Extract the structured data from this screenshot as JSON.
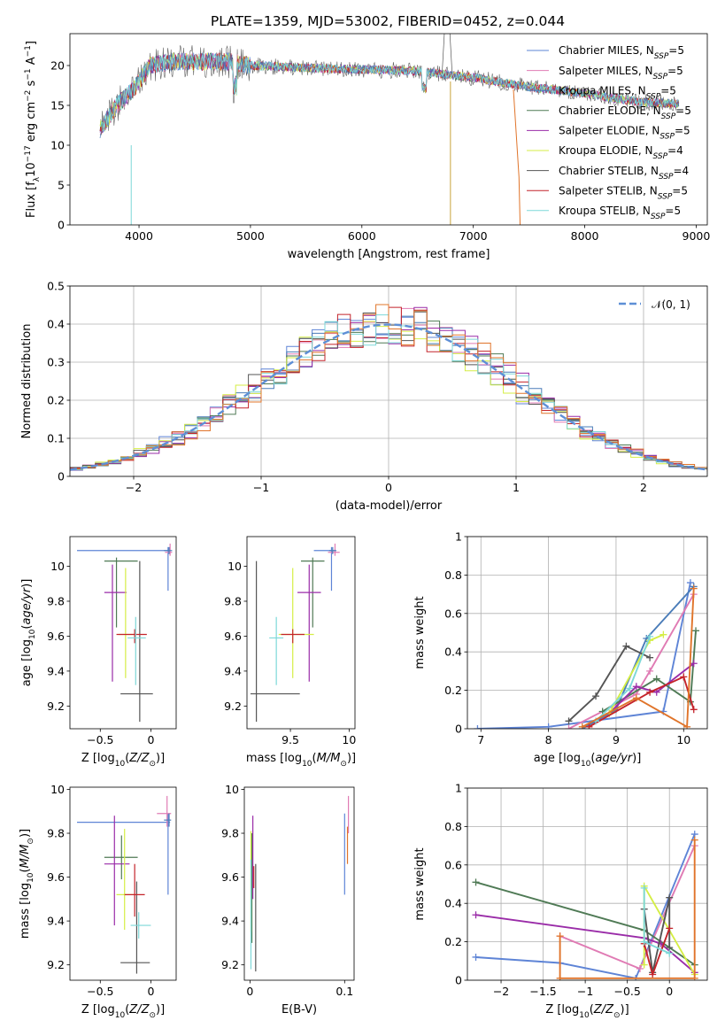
{
  "title": "PLATE=1359, MJD=53002, FIBERID=0452, z=0.044",
  "colors": {
    "Chabrier MILES": "#5e84d6",
    "Salpeter MILES": "#e07bb4",
    "Kroupa MILES": "#4a7cb8",
    "Chabrier ELODIE": "#4f7a55",
    "Salpeter ELODIE": "#9a2ca8",
    "Kroupa ELODIE": "#d5ee45",
    "Chabrier STELIB": "#555555",
    "Salpeter STELIB": "#c4232a",
    "Kroupa STELIB": "#7dd8d8",
    "accent_orange": "#e0742a"
  },
  "chart_data": [
    {
      "type": "line",
      "panel": "spectrum",
      "xlabel": "wavelength [Angstrom, rest frame]",
      "ylabel_parts": [
        "Flux [f",
        "λ",
        "10",
        "−17",
        " erg cm",
        "−2",
        " s",
        "−1",
        " A",
        "−1",
        "]"
      ],
      "xlim": [
        3380,
        9100
      ],
      "ylim": [
        0,
        24
      ],
      "xticks": [
        4000,
        5000,
        6000,
        7000,
        8000,
        9000
      ],
      "yticks": [
        0,
        5,
        10,
        15,
        20
      ],
      "legend_position": "top-right",
      "series": [
        {
          "base": "Chabrier MILES, N",
          "sub": "SSP",
          "tail": "=5"
        },
        {
          "base": "Salpeter MILES, N",
          "sub": "SSP",
          "tail": "=5"
        },
        {
          "base": "Kroupa MILES, N",
          "sub": "SSP",
          "tail": "=5"
        },
        {
          "base": "Chabrier ELODIE, N",
          "sub": "SSP",
          "tail": "=5"
        },
        {
          "base": "Salpeter ELODIE, N",
          "sub": "SSP",
          "tail": "=5"
        },
        {
          "base": "Kroupa ELODIE, N",
          "sub": "SSP",
          "tail": "=4"
        },
        {
          "base": "Chabrier STELIB, N",
          "sub": "SSP",
          "tail": "=4"
        },
        {
          "base": "Salpeter STELIB, N",
          "sub": "SSP",
          "tail": "=5"
        },
        {
          "base": "Kroupa STELIB, N",
          "sub": "SSP",
          "tail": "=5"
        }
      ],
      "continuum_x": [
        3650,
        3800,
        3950,
        4100,
        4300,
        4500,
        4800,
        5000,
        5500,
        6000,
        6500,
        7000,
        7500,
        8000,
        8500,
        8850
      ],
      "continuum_y": [
        12,
        15,
        17,
        20,
        20.5,
        20.5,
        20.5,
        20,
        19.7,
        19.5,
        19.3,
        18.5,
        17.3,
        16.5,
        15.4,
        15.2
      ]
    },
    {
      "type": "histogram",
      "panel": "residuals",
      "xlabel": "(data-model)/error",
      "ylabel": "Normed distribution",
      "xlim": [
        -2.5,
        2.5
      ],
      "ylim": [
        0,
        0.5
      ],
      "xticks": [
        -2,
        -1,
        0,
        1,
        2
      ],
      "yticks": [
        0.0,
        0.1,
        0.2,
        0.3,
        0.4,
        0.5
      ],
      "grid": true,
      "legend_position": "top-right",
      "reference_curve": "𝒩(0, 1)",
      "bin_width": 0.1
    },
    {
      "type": "errorbar",
      "panel": "age-vs-Z",
      "xlabel": "Z [log10(Z/Z⊙)]",
      "ylabel": "age  [log10(age/yr)]",
      "xlim": [
        -0.8,
        0.25
      ],
      "ylim": [
        9.07,
        10.17
      ],
      "xticks": [
        -0.5,
        0.0
      ],
      "yticks": [
        9.2,
        9.4,
        9.6,
        9.8,
        10.0
      ],
      "points": [
        {
          "model": "Chabrier MILES",
          "x": 0.17,
          "y": 10.09,
          "xerr": [
            0.9,
            0.02
          ],
          "yerr": [
            0.23,
            0.02
          ]
        },
        {
          "model": "Salpeter MILES",
          "x": 0.19,
          "y": 10.08,
          "xerr": [
            0.05,
            0.02
          ],
          "yerr": [
            0.02,
            0.05
          ]
        },
        {
          "model": "Kroupa MILES",
          "x": 0.18,
          "y": 10.09,
          "xerr": [
            0.05,
            0.03
          ],
          "yerr": [
            0.02,
            0.02
          ]
        },
        {
          "model": "Chabrier ELODIE",
          "x": -0.34,
          "y": 10.03,
          "xerr": [
            0.12,
            0.21
          ],
          "yerr": [
            0.38,
            0.02
          ]
        },
        {
          "model": "Salpeter ELODIE",
          "x": -0.38,
          "y": 9.85,
          "xerr": [
            0.08,
            0.14
          ],
          "yerr": [
            0.51,
            0.16
          ]
        },
        {
          "model": "Kroupa ELODIE",
          "x": -0.25,
          "y": 9.61,
          "xerr": [
            0.07,
            0.1
          ],
          "yerr": [
            0.25,
            0.38
          ]
        },
        {
          "model": "Chabrier STELIB",
          "x": -0.11,
          "y": 9.27,
          "xerr": [
            0.19,
            0.13
          ],
          "yerr": [
            0.16,
            0.76
          ]
        },
        {
          "model": "Salpeter STELIB",
          "x": -0.16,
          "y": 9.61,
          "xerr": [
            0.18,
            0.12
          ],
          "yerr": [
            0.05,
            0.03
          ]
        },
        {
          "model": "Kroupa STELIB",
          "x": -0.15,
          "y": 9.59,
          "xerr": [
            0.08,
            0.1
          ],
          "yerr": [
            0.27,
            0.12
          ]
        }
      ]
    },
    {
      "type": "errorbar",
      "panel": "age-vs-mass",
      "xlabel": "mass [log10(M/M⊙)]",
      "ylabel": "",
      "xlim": [
        9.13,
        10.05
      ],
      "ylim": [
        9.07,
        10.17
      ],
      "xticks": [
        9.5,
        10.0
      ],
      "yticks": [
        9.2,
        9.4,
        9.6,
        9.8,
        10.0
      ],
      "points": [
        {
          "model": "Chabrier MILES",
          "x": 9.85,
          "y": 10.09,
          "xerr": [
            0.15,
            0.04
          ],
          "yerr": [
            0.23,
            0.02
          ]
        },
        {
          "model": "Salpeter MILES",
          "x": 9.88,
          "y": 10.08,
          "xerr": [
            0.06,
            0.04
          ],
          "yerr": [
            0.02,
            0.05
          ]
        },
        {
          "model": "Kroupa MILES",
          "x": 9.86,
          "y": 10.09,
          "xerr": [
            0.03,
            0.03
          ],
          "yerr": [
            0.02,
            0.02
          ]
        },
        {
          "model": "Chabrier ELODIE",
          "x": 9.69,
          "y": 10.03,
          "xerr": [
            0.1,
            0.1
          ],
          "yerr": [
            0.38,
            0.02
          ]
        },
        {
          "model": "Salpeter ELODIE",
          "x": 9.66,
          "y": 9.85,
          "xerr": [
            0.1,
            0.1
          ],
          "yerr": [
            0.51,
            0.16
          ]
        },
        {
          "model": "Kroupa ELODIE",
          "x": 9.52,
          "y": 9.61,
          "xerr": [
            0.12,
            0.18
          ],
          "yerr": [
            0.25,
            0.38
          ]
        },
        {
          "model": "Chabrier STELIB",
          "x": 9.21,
          "y": 9.27,
          "xerr": [
            0.05,
            0.37
          ],
          "yerr": [
            0.16,
            0.76
          ]
        },
        {
          "model": "Salpeter STELIB",
          "x": 9.52,
          "y": 9.61,
          "xerr": [
            0.1,
            0.1
          ],
          "yerr": [
            0.05,
            0.03
          ]
        },
        {
          "model": "Kroupa STELIB",
          "x": 9.38,
          "y": 9.59,
          "xerr": [
            0.06,
            0.06
          ],
          "yerr": [
            0.27,
            0.12
          ]
        }
      ]
    },
    {
      "type": "line",
      "panel": "weight-vs-age",
      "xlabel": "age  [log10(age/yr)]",
      "ylabel": "mass weight",
      "xlim": [
        6.8,
        10.35
      ],
      "ylim": [
        0,
        1
      ],
      "xticks": [
        7,
        8,
        9,
        10
      ],
      "yticks": [
        0.0,
        0.2,
        0.4,
        0.6,
        0.8,
        1.0
      ],
      "grid": true,
      "series": [
        {
          "model": "Chabrier MILES",
          "x": [
            6.95,
            8.0,
            9.7,
            10.1
          ],
          "y": [
            0.0,
            0.01,
            0.09,
            0.76
          ]
        },
        {
          "model": "Salpeter MILES",
          "x": [
            8.3,
            9.3,
            9.5,
            10.15
          ],
          "y": [
            0.0,
            0.18,
            0.3,
            0.7
          ]
        },
        {
          "model": "Kroupa MILES",
          "x": [
            8.5,
            9.0,
            9.45,
            10.15
          ],
          "y": [
            0.0,
            0.1,
            0.47,
            0.74
          ]
        },
        {
          "model": "Chabrier ELODIE",
          "x": [
            8.8,
            9.6,
            10.1,
            10.18
          ],
          "y": [
            0.09,
            0.26,
            0.14,
            0.51
          ]
        },
        {
          "model": "Salpeter ELODIE",
          "x": [
            8.9,
            9.3,
            9.6,
            10.15
          ],
          "y": [
            0.08,
            0.22,
            0.19,
            0.34
          ]
        },
        {
          "model": "Kroupa ELODIE",
          "x": [
            8.9,
            9.5,
            9.7
          ],
          "y": [
            0.08,
            0.46,
            0.49
          ]
        },
        {
          "model": "Chabrier STELIB",
          "x": [
            8.3,
            8.7,
            9.15,
            9.5
          ],
          "y": [
            0.04,
            0.17,
            0.43,
            0.37
          ]
        },
        {
          "model": "Salpeter STELIB",
          "x": [
            8.6,
            9.5,
            10.0,
            10.15
          ],
          "y": [
            0.01,
            0.19,
            0.27,
            0.1
          ]
        },
        {
          "model": "Kroupa STELIB",
          "x": [
            8.7,
            9.2,
            9.5
          ],
          "y": [
            0.04,
            0.21,
            0.48
          ]
        },
        {
          "model": "accent_orange",
          "x": [
            8.5,
            9.3,
            10.05,
            10.15
          ],
          "y": [
            0.01,
            0.16,
            0.01,
            0.73
          ]
        }
      ]
    },
    {
      "type": "errorbar",
      "panel": "mass-vs-Z",
      "xlabel": "Z [log10(Z/Z⊙)]",
      "ylabel": "mass [log10(M/M⊙)]",
      "xlim": [
        -0.8,
        0.25
      ],
      "ylim": [
        9.13,
        10.01
      ],
      "xticks": [
        -0.5,
        0.0
      ],
      "yticks": [
        9.2,
        9.4,
        9.6,
        9.8,
        10.0
      ],
      "points": [
        {
          "model": "Chabrier MILES",
          "x": 0.17,
          "y": 9.85,
          "xerr": [
            0.9,
            0.02
          ],
          "yerr": [
            0.33,
            0.04
          ]
        },
        {
          "model": "Salpeter MILES",
          "x": 0.16,
          "y": 9.89,
          "xerr": [
            0.1,
            0.04
          ],
          "yerr": [
            0.06,
            0.08
          ]
        },
        {
          "model": "Kroupa MILES",
          "x": 0.18,
          "y": 9.86,
          "xerr": [
            0.05,
            0.02
          ],
          "yerr": [
            0.03,
            0.03
          ]
        },
        {
          "model": "Chabrier ELODIE",
          "x": -0.29,
          "y": 9.69,
          "xerr": [
            0.17,
            0.16
          ],
          "yerr": [
            0.1,
            0.1
          ]
        },
        {
          "model": "Salpeter ELODIE",
          "x": -0.36,
          "y": 9.66,
          "xerr": [
            0.1,
            0.15
          ],
          "yerr": [
            0.28,
            0.22
          ]
        },
        {
          "model": "Kroupa ELODIE",
          "x": -0.26,
          "y": 9.52,
          "xerr": [
            0.08,
            0.1
          ],
          "yerr": [
            0.16,
            0.3
          ]
        },
        {
          "model": "Chabrier STELIB",
          "x": -0.14,
          "y": 9.21,
          "xerr": [
            0.16,
            0.13
          ],
          "yerr": [
            0.05,
            0.37
          ]
        },
        {
          "model": "Salpeter STELIB",
          "x": -0.16,
          "y": 9.52,
          "xerr": [
            0.1,
            0.1
          ],
          "yerr": [
            0.1,
            0.14
          ]
        },
        {
          "model": "Kroupa STELIB",
          "x": -0.12,
          "y": 9.38,
          "xerr": [
            0.08,
            0.12
          ],
          "yerr": [
            0.06,
            0.06
          ]
        }
      ]
    },
    {
      "type": "errorbar",
      "panel": "mass-vs-EBV",
      "xlabel": "E(B-V)",
      "ylabel": "",
      "xlim": [
        -0.006,
        0.11
      ],
      "ylim": [
        9.13,
        10.01
      ],
      "xticks": [
        0.0,
        0.1
      ],
      "yticks": [
        9.2,
        9.4,
        9.6,
        9.8,
        10.0
      ],
      "points": [
        {
          "model": "Chabrier MILES",
          "x": 0.1,
          "y": 9.7,
          "yerr": [
            0.18,
            0.19
          ]
        },
        {
          "model": "Salpeter MILES",
          "x": 0.104,
          "y": 9.88,
          "yerr": [
            0.08,
            0.09
          ]
        },
        {
          "model": "accent_orange",
          "x": 0.103,
          "y": 9.78,
          "yerr": [
            0.12,
            0.05
          ]
        },
        {
          "model": "Chabrier ELODIE",
          "x": 0.002,
          "y": 9.6,
          "yerr": [
            0.3,
            0.2
          ]
        },
        {
          "model": "Salpeter ELODIE",
          "x": 0.003,
          "y": 9.7,
          "yerr": [
            0.2,
            0.18
          ]
        },
        {
          "model": "Kroupa ELODIE",
          "x": 0.001,
          "y": 9.65,
          "yerr": [
            0.3,
            0.16
          ]
        },
        {
          "model": "Chabrier STELIB",
          "x": 0.006,
          "y": 9.42,
          "yerr": [
            0.25,
            0.24
          ]
        },
        {
          "model": "Salpeter STELIB",
          "x": 0.004,
          "y": 9.6,
          "yerr": [
            0.05,
            0.05
          ]
        },
        {
          "model": "Kroupa STELIB",
          "x": 0.001,
          "y": 9.38,
          "yerr": [
            0.2,
            0.3
          ]
        }
      ]
    },
    {
      "type": "line",
      "panel": "weight-vs-Z",
      "xlabel": "Z [log10(Z/Z⊙)]",
      "ylabel": "mass weight",
      "xlim": [
        -2.4,
        0.45
      ],
      "ylim": [
        0,
        1
      ],
      "xticks": [
        -2.0,
        -1.5,
        -1.0,
        -0.5,
        0.0
      ],
      "yticks": [
        0.0,
        0.2,
        0.4,
        0.6,
        0.8,
        1.0
      ],
      "grid": true,
      "series": [
        {
          "model": "Chabrier MILES",
          "x": [
            -2.3,
            -1.3,
            -0.4,
            0.3
          ],
          "y": [
            0.12,
            0.09,
            0.01,
            0.76
          ]
        },
        {
          "model": "Salpeter MILES",
          "x": [
            -1.3,
            -0.35,
            0.3
          ],
          "y": [
            0.23,
            0.06,
            0.7
          ]
        },
        {
          "model": "Chabrier ELODIE",
          "x": [
            -2.3,
            -0.3,
            0.3
          ],
          "y": [
            0.51,
            0.26,
            0.08
          ]
        },
        {
          "model": "Salpeter ELODIE",
          "x": [
            -2.3,
            -0.3,
            -0.1,
            0.3
          ],
          "y": [
            0.34,
            0.22,
            0.19,
            0.04
          ]
        },
        {
          "model": "Kroupa ELODIE",
          "x": [
            -0.3,
            -0.3,
            0.3
          ],
          "y": [
            0.08,
            0.49,
            0.03
          ]
        },
        {
          "model": "Chabrier STELIB",
          "x": [
            -0.3,
            -0.2,
            0.0,
            0.0
          ],
          "y": [
            0.37,
            0.04,
            0.43,
            0.17
          ]
        },
        {
          "model": "Salpeter STELIB",
          "x": [
            -0.3,
            -0.2,
            0.0
          ],
          "y": [
            0.19,
            0.03,
            0.27
          ]
        },
        {
          "model": "Kroupa STELIB",
          "x": [
            -0.3,
            -0.3,
            0.0
          ],
          "y": [
            0.48,
            0.2,
            0.14
          ]
        },
        {
          "model": "accent_orange",
          "x": [
            -1.3,
            -1.3,
            0.3,
            0.3
          ],
          "y": [
            0.23,
            0.01,
            0.01,
            0.73
          ]
        }
      ]
    }
  ]
}
